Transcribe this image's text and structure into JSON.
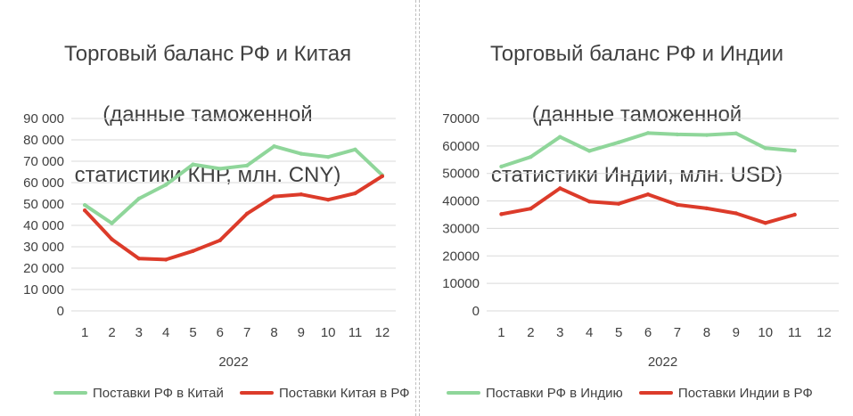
{
  "colors": {
    "exports": "#8fd69a",
    "imports": "#dc3b2a",
    "grid": "#d9d9d9"
  },
  "chart_data": [
    {
      "type": "line",
      "title": [
        "Торговый баланс РФ и Китая",
        "(данные таможенной",
        "статистики КНР, млн. CNY)"
      ],
      "x": [
        "1",
        "2",
        "3",
        "4",
        "5",
        "6",
        "7",
        "8",
        "9",
        "10",
        "11",
        "12"
      ],
      "xlabel": "2022",
      "ylim": [
        0,
        90000
      ],
      "yticks": [
        "90 000",
        "80 000",
        "70 000",
        "60 000",
        "50 000",
        "40 000",
        "30 000",
        "20 000",
        "10 000",
        "0"
      ],
      "ytick_values": [
        90000,
        80000,
        70000,
        60000,
        50000,
        40000,
        30000,
        20000,
        10000,
        0
      ],
      "grid": true,
      "legend": "bottom",
      "series": [
        {
          "name": "Поставки РФ в Китай",
          "color": "#8fd69a",
          "values": [
            49500,
            41000,
            52500,
            59000,
            68500,
            66500,
            68000,
            77000,
            73500,
            72000,
            75500,
            63500
          ]
        },
        {
          "name": "Поставки Китая в РФ",
          "color": "#dc3b2a",
          "values": [
            47000,
            33500,
            24500,
            24000,
            28000,
            33000,
            45500,
            53500,
            54500,
            52000,
            55000,
            63000
          ]
        }
      ]
    },
    {
      "type": "line",
      "title": [
        "Торговый баланс РФ и Индии",
        "(данные таможенной",
        "статистики Индии, млн. USD)"
      ],
      "x": [
        "1",
        "2",
        "3",
        "4",
        "5",
        "6",
        "7",
        "8",
        "9",
        "10",
        "11",
        "12"
      ],
      "xlabel": "2022",
      "ylim": [
        0,
        70000
      ],
      "yticks": [
        "70000",
        "60000",
        "50000",
        "40000",
        "30000",
        "20000",
        "10000",
        "0"
      ],
      "ytick_values": [
        70000,
        60000,
        50000,
        40000,
        30000,
        20000,
        10000,
        0
      ],
      "grid": true,
      "legend": "bottom",
      "series": [
        {
          "name": "Поставки РФ в Индию",
          "color": "#8fd69a",
          "values": [
            52500,
            56000,
            63300,
            58200,
            61300,
            64700,
            64200,
            64000,
            64600,
            59200,
            58300,
            null
          ]
        },
        {
          "name": "Поставки Индии в РФ",
          "color": "#dc3b2a",
          "values": [
            35200,
            37200,
            44600,
            39800,
            39000,
            42400,
            38600,
            37300,
            35500,
            32000,
            35000,
            null
          ]
        }
      ]
    }
  ]
}
